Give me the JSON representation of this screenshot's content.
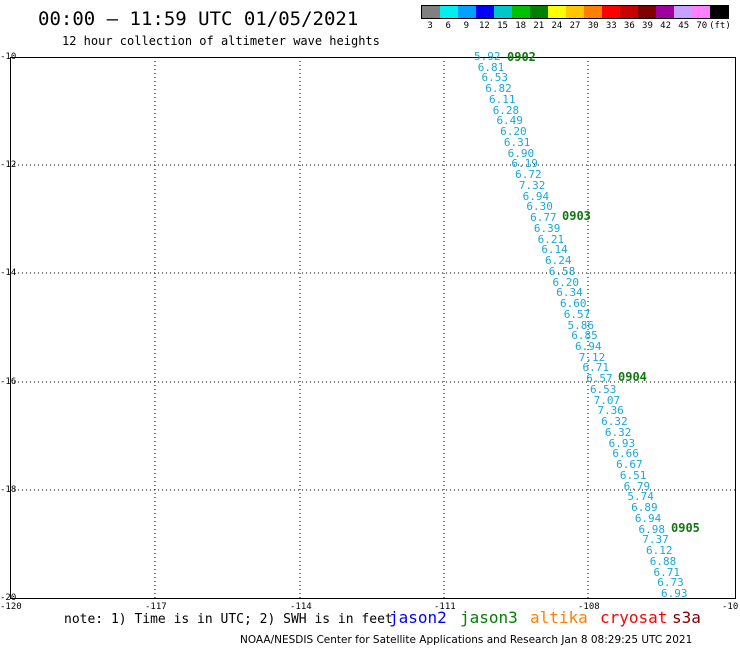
{
  "header": {
    "title": "00:00 – 11:59 UTC 01/05/2021",
    "subtitle": "12 hour collection of altimeter wave heights"
  },
  "legend": {
    "colors": [
      "#808080",
      "#00f0f0",
      "#00a0ff",
      "#0000ff",
      "#00c8c8",
      "#00c000",
      "#008000",
      "#ffff00",
      "#ffc800",
      "#ff8000",
      "#ff0000",
      "#c80000",
      "#800000",
      "#a000a0",
      "#c8a0ff",
      "#ff80ff",
      "#000000"
    ],
    "labels": [
      "3",
      "6",
      "9",
      "12",
      "15",
      "18",
      "21",
      "24",
      "27",
      "30",
      "33",
      "36",
      "39",
      "42",
      "45",
      "70",
      "(ft)"
    ]
  },
  "axes": {
    "lat_labels": [
      "-10",
      "-12",
      "-14",
      "-16",
      "-18",
      "-20"
    ],
    "lon_labels": [
      "-120",
      "-117",
      "-114",
      "-111",
      "-108",
      "-10"
    ]
  },
  "passes": [
    "0902",
    "0903",
    "0904",
    "0905"
  ],
  "swh_values": [
    "5.92",
    "6.81",
    "6.53",
    "6.82",
    "6.11",
    "6.28",
    "6.49",
    "6.20",
    "6.31",
    "6.90",
    "6.19",
    "6.72",
    "7.32",
    "6.94",
    "6.30",
    "6.77",
    "6.39",
    "6.21",
    "6.14",
    "6.24",
    "6.58",
    "6.20",
    "6.34",
    "6.60",
    "6.57",
    "5.86",
    "6.85",
    "6.94",
    "7.12",
    "6.71",
    "6.57",
    "6.53",
    "7.07",
    "7.36",
    "6.32",
    "6.32",
    "6.93",
    "6.66",
    "6.67",
    "6.51",
    "6.79",
    "5.74",
    "6.89",
    "6.94",
    "6.98",
    "7.37",
    "6.12",
    "6.88",
    "6.71",
    "6.73",
    "6.93"
  ],
  "note": "note: 1) Time is in UTC; 2) SWH is in feet",
  "satellites": [
    {
      "name": "jason2",
      "color": "#0000ff"
    },
    {
      "name": "jason3",
      "color": "#008000"
    },
    {
      "name": "altika",
      "color": "#ff8000"
    },
    {
      "name": "cryosat",
      "color": "#ff0000"
    },
    {
      "name": "s3a",
      "color": "#800000"
    }
  ],
  "footer": "NOAA/NESDIS Center for Satellite Applications and Research   Jan  8 08:29:25 UTC 2021"
}
